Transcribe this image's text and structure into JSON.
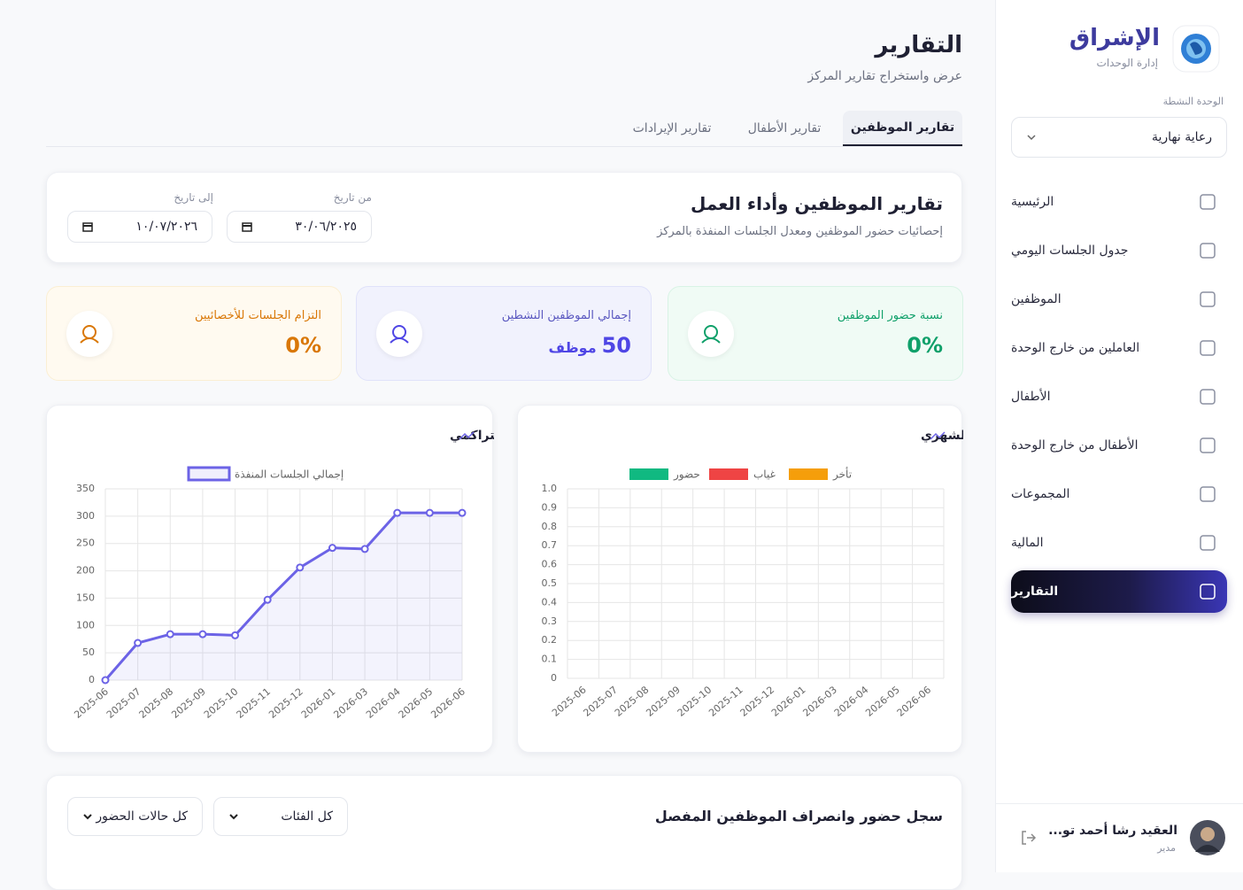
{
  "sidebar": {
    "brand": "الإشراق",
    "brand_subtitle": "إدارة الوحدات",
    "unit_label": "الوحدة النشطة",
    "unit_value": "رعاية نهارية",
    "nav": [
      "الرئيسية",
      "جدول الجلسات اليومي",
      "الموظفين",
      "العاملين من خارج الوحدة",
      "الأطفال",
      "الأطفال من خارج الوحدة",
      "المجموعات",
      "المالية",
      "التقارير"
    ],
    "user": {
      "name": "العقيد رشا أحمد تو...",
      "role": "مدير"
    }
  },
  "header": {
    "title": "التقارير",
    "subtitle": "عرض واستخراج تقارير المركز"
  },
  "tabs": [
    "تقارير الموظفين",
    "تقارير الأطفال",
    "تقارير الإيرادات"
  ],
  "filter": {
    "title": "تقارير الموظفين وأداء العمل",
    "subtitle": "إحصائيات حضور الموظفين ومعدل الجلسات المنفذة بالمركز",
    "from_label": "من تاريخ",
    "from_value": "٣٠/٠٦/٢٠٢٥",
    "to_label": "إلى تاريخ",
    "to_value": "١٠/٠٧/٢٠٢٦"
  },
  "stats": [
    {
      "label": "نسبة حضور الموظفين",
      "value": "0%"
    },
    {
      "label": "إجمالي الموظفين النشطين",
      "value": "50",
      "unit": "موظف"
    },
    {
      "label": "التزام الجلسات للأخصائيين",
      "value": "0%"
    }
  ],
  "chart_data": [
    {
      "type": "line",
      "title": "نمو الجلسات المنفذة التراكمي",
      "categories": [
        "2025-06",
        "2025-07",
        "2025-08",
        "2025-09",
        "2025-10",
        "2025-11",
        "2025-12",
        "2026-01",
        "2026-03",
        "2026-04",
        "2026-05",
        "2026-06"
      ],
      "series": [
        {
          "name": "إجمالي الجلسات المنفذة",
          "color": "#6c63e6",
          "values": [
            0,
            68,
            84,
            84,
            82,
            147,
            206,
            242,
            240,
            306,
            306,
            306
          ]
        }
      ],
      "ylim": [
        0,
        350
      ],
      "yticks": [
        0,
        50,
        100,
        150,
        200,
        250,
        300,
        350
      ],
      "grid": true
    },
    {
      "type": "bar",
      "title": "مخطط نسب حضور الموظفين الشهري",
      "categories": [
        "2025-06",
        "2025-07",
        "2025-08",
        "2025-09",
        "2025-10",
        "2025-11",
        "2025-12",
        "2026-01",
        "2026-03",
        "2026-04",
        "2026-05",
        "2026-06"
      ],
      "series": [
        {
          "name": "حضور",
          "color": "#10b981",
          "values": [
            0,
            0,
            0,
            0,
            0,
            0,
            0,
            0,
            0,
            0,
            0,
            0
          ]
        },
        {
          "name": "غياب",
          "color": "#ef4444",
          "values": [
            0,
            0,
            0,
            0,
            0,
            0,
            0,
            0,
            0,
            0,
            0,
            0
          ]
        },
        {
          "name": "تأخر",
          "color": "#f59e0b",
          "values": [
            0,
            0,
            0,
            0,
            0,
            0,
            0,
            0,
            0,
            0,
            0,
            0
          ]
        }
      ],
      "ylim": [
        0,
        1
      ],
      "yticks": [
        0,
        0.1,
        0.2,
        0.3,
        0.4,
        0.5,
        0.6,
        0.7,
        0.8,
        0.9,
        {
          "value": 1,
          "label": "1.0"
        }
      ],
      "grid": true
    }
  ],
  "log": {
    "title": "سجل حضور وانصراف الموظفين المفصل",
    "filters": [
      "كل الفئات",
      "كل حالات الحضور"
    ]
  }
}
